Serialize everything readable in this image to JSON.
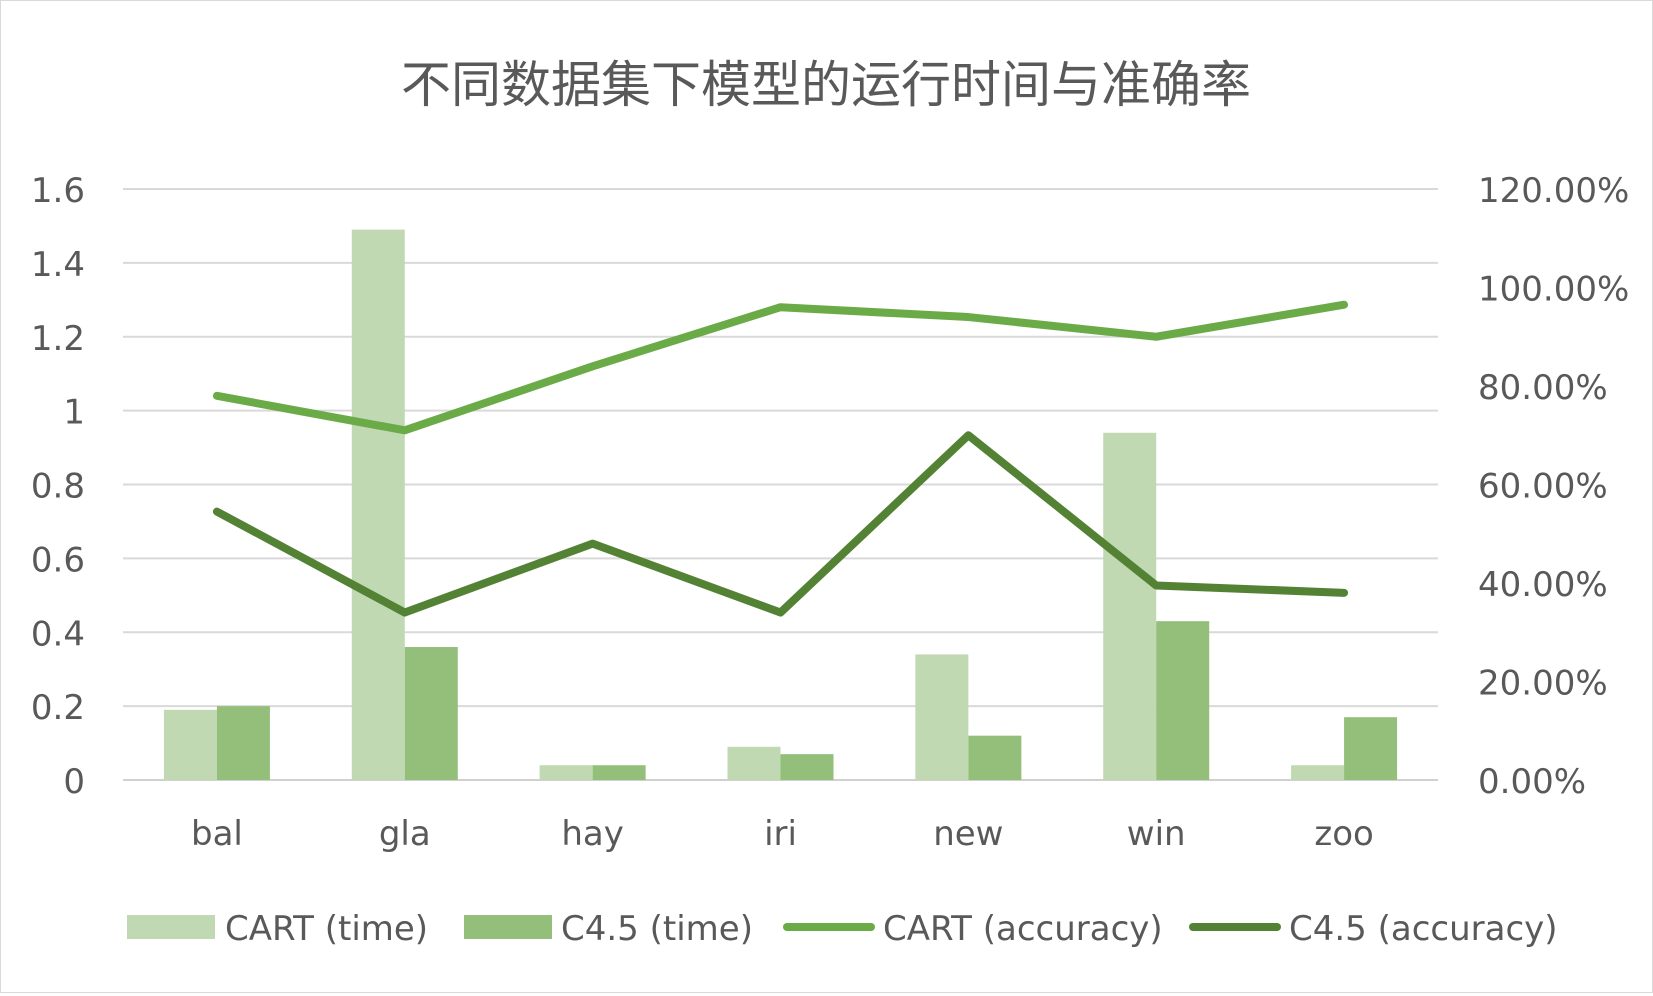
{
  "chart_data": {
    "type": "bar",
    "title": "不同数据集下模型的运行时间与准确率",
    "categories": [
      "bal",
      "gla",
      "hay",
      "iri",
      "new",
      "win",
      "zoo"
    ],
    "y_left": {
      "ylim": [
        0,
        1.6
      ],
      "ticks": [
        0,
        0.2,
        0.4,
        0.6,
        0.8,
        1,
        1.2,
        1.4,
        1.6
      ],
      "tick_labels": [
        "0",
        "0.2",
        "0.4",
        "0.6",
        "0.8",
        "1",
        "1.2",
        "1.4",
        "1.6"
      ]
    },
    "y_right": {
      "ylim": [
        0,
        1.2
      ],
      "ticks": [
        0,
        0.2,
        0.4,
        0.6,
        0.8,
        1.0,
        1.2
      ],
      "tick_labels": [
        "0.00%",
        "20.00%",
        "40.00%",
        "60.00%",
        "80.00%",
        "100.00%",
        "120.00%"
      ]
    },
    "grid": true,
    "legend_position": "bottom",
    "series": [
      {
        "name": "CART (time)",
        "type": "bar",
        "axis": "left",
        "color": "#c0d9b3",
        "values": [
          0.19,
          1.49,
          0.04,
          0.09,
          0.34,
          0.94,
          0.04
        ]
      },
      {
        "name": "C4.5 (time)",
        "type": "bar",
        "axis": "left",
        "color": "#93bf7a",
        "values": [
          0.2,
          0.36,
          0.04,
          0.07,
          0.12,
          0.43,
          0.17
        ]
      },
      {
        "name": "CART (accuracy)",
        "type": "line",
        "axis": "right",
        "color": "#6aab48",
        "values": [
          0.78,
          0.71,
          0.84,
          0.96,
          0.94,
          0.9,
          0.965
        ]
      },
      {
        "name": "C4.5 (accuracy)",
        "type": "line",
        "axis": "right",
        "color": "#548235",
        "values": [
          0.545,
          0.34,
          0.48,
          0.34,
          0.7,
          0.395,
          0.38
        ]
      }
    ]
  }
}
